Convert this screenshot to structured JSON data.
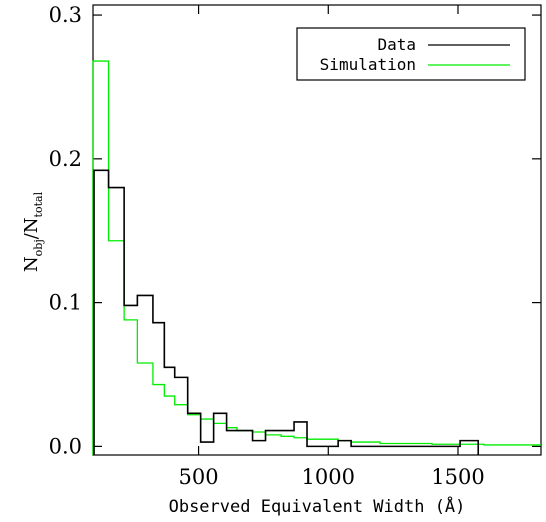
{
  "chart_data": {
    "type": "histogram",
    "xlabel": "Observed Equivalent Width (Å)",
    "ylabel_main": "N",
    "ylabel_sub_num": "obj",
    "ylabel_sub_den": "total",
    "xlim": [
      93,
      1820
    ],
    "ylim": [
      -0.006,
      0.307
    ],
    "x_ticks": [
      500,
      1000,
      1500
    ],
    "y_ticks": [
      0.0,
      0.1,
      0.2,
      0.3
    ],
    "y_tick_labels": [
      "0.0",
      "0.1",
      "0.2",
      "0.3"
    ],
    "legend_position": "top-right",
    "series": [
      {
        "name": "Data",
        "color": "#000000",
        "bins": [
          [
            97,
            153,
            0.192
          ],
          [
            153,
            213,
            0.18
          ],
          [
            213,
            264,
            0.098
          ],
          [
            264,
            324,
            0.105
          ],
          [
            324,
            368,
            0.086
          ],
          [
            368,
            408,
            0.055
          ],
          [
            408,
            458,
            0.048
          ],
          [
            458,
            508,
            0.023
          ],
          [
            508,
            558,
            0.003
          ],
          [
            558,
            608,
            0.023
          ],
          [
            608,
            648,
            0.011
          ],
          [
            648,
            708,
            0.011
          ],
          [
            708,
            758,
            0.004
          ],
          [
            758,
            818,
            0.011
          ],
          [
            818,
            868,
            0.011
          ],
          [
            868,
            918,
            0.017
          ],
          [
            918,
            1038,
            0.0
          ],
          [
            1038,
            1088,
            0.004
          ],
          [
            1088,
            1508,
            0.0
          ],
          [
            1508,
            1578,
            0.004
          ]
        ]
      },
      {
        "name": "Simulation",
        "color": "#00ee00",
        "bins": [
          [
            93,
            153,
            0.268
          ],
          [
            153,
            213,
            0.143
          ],
          [
            213,
            264,
            0.088
          ],
          [
            264,
            324,
            0.058
          ],
          [
            324,
            368,
            0.043
          ],
          [
            368,
            408,
            0.035
          ],
          [
            408,
            458,
            0.029
          ],
          [
            458,
            508,
            0.022
          ],
          [
            508,
            558,
            0.019
          ],
          [
            558,
            608,
            0.016
          ],
          [
            608,
            648,
            0.013
          ],
          [
            648,
            708,
            0.011
          ],
          [
            708,
            758,
            0.01
          ],
          [
            758,
            818,
            0.008
          ],
          [
            818,
            868,
            0.007
          ],
          [
            868,
            918,
            0.006
          ],
          [
            918,
            1038,
            0.005
          ],
          [
            1038,
            1088,
            0.004
          ],
          [
            1088,
            1200,
            0.003
          ],
          [
            1200,
            1400,
            0.002
          ],
          [
            1400,
            1600,
            0.0015
          ],
          [
            1600,
            1820,
            0.001
          ]
        ]
      }
    ]
  }
}
